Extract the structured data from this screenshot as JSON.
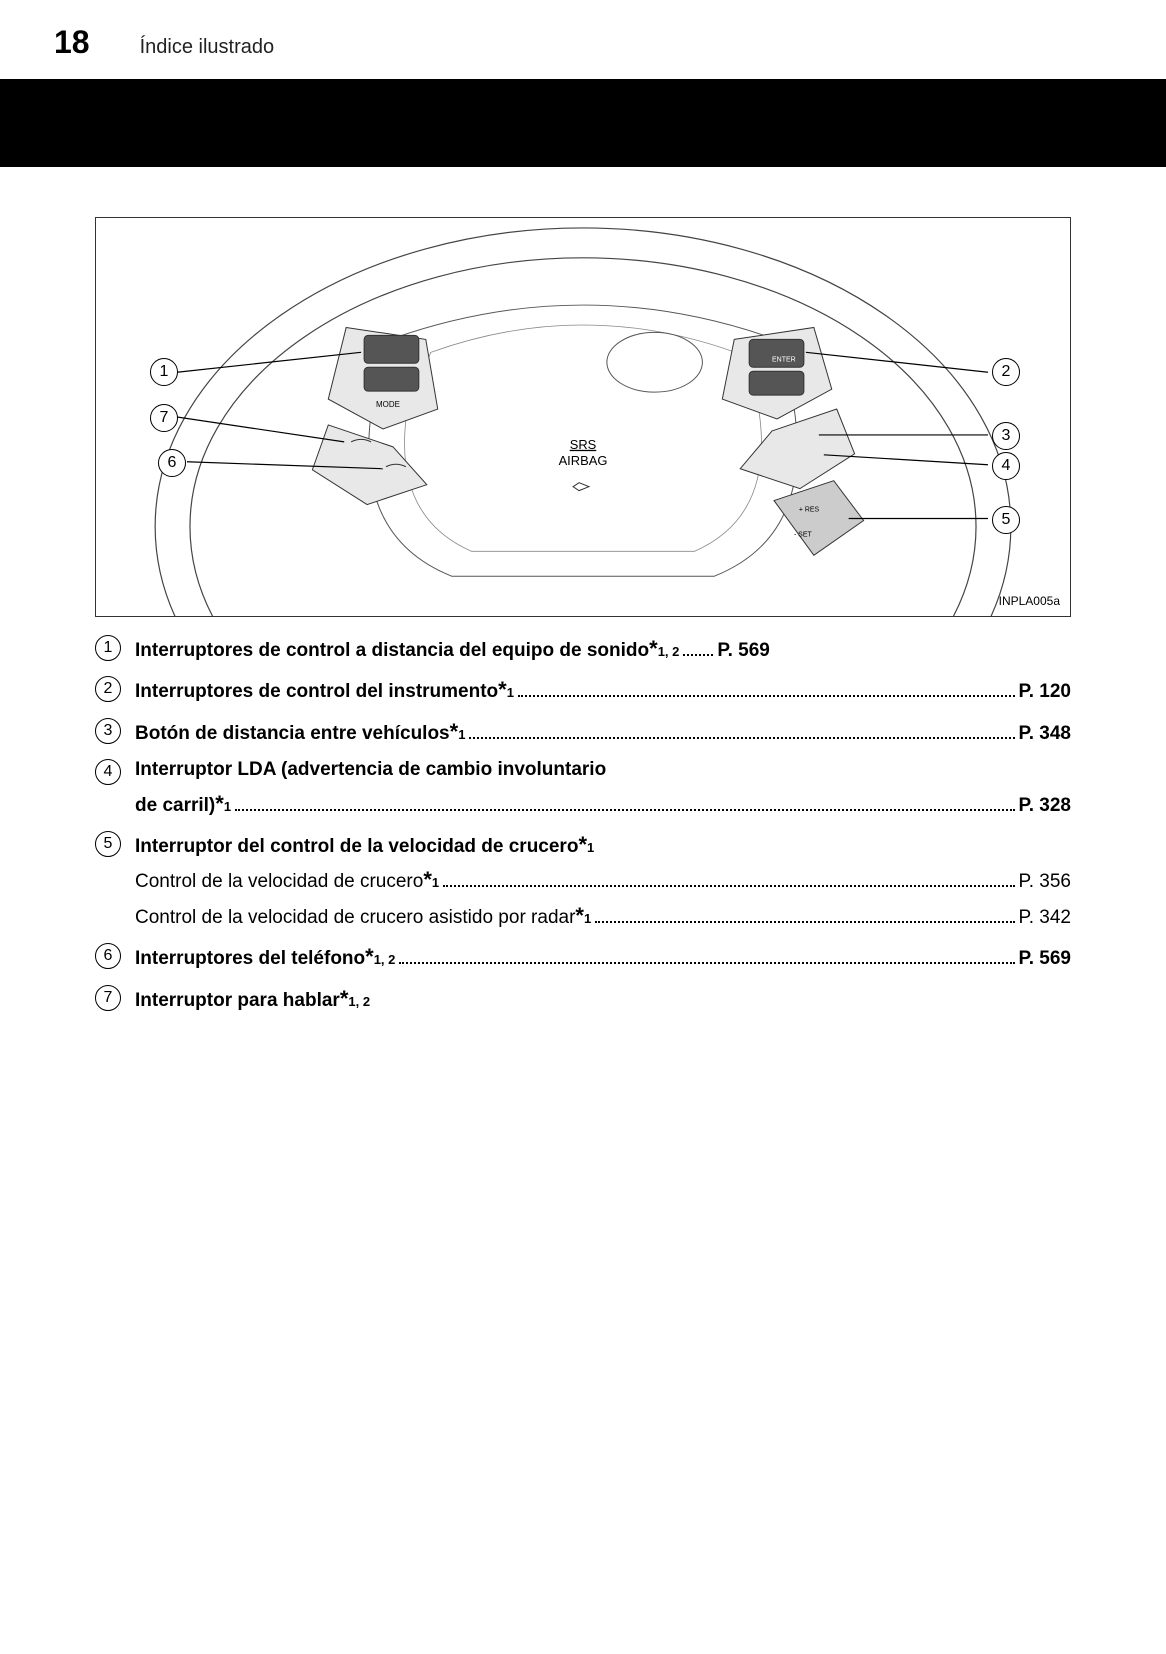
{
  "header": {
    "page_number": "18",
    "section_title": "Índice ilustrado"
  },
  "diagram": {
    "image_code": "INPLA005a",
    "srs_text_top": "SRS",
    "srs_text_bottom": "AIRBAG",
    "callouts": {
      "c1": "1",
      "c2": "2",
      "c3": "3",
      "c4": "4",
      "c5": "5",
      "c6": "6",
      "c7": "7"
    }
  },
  "items": [
    {
      "num": "1",
      "lines": [
        {
          "bold": true,
          "text": "Interruptores de control a distancia del equipo de sonido",
          "sup": "1, 2",
          "page": "P. 569",
          "dots_small": true
        }
      ]
    },
    {
      "num": "2",
      "lines": [
        {
          "bold": true,
          "text": "Interruptores de control del instrumento",
          "sup": "1",
          "page": "P. 120"
        }
      ]
    },
    {
      "num": "3",
      "lines": [
        {
          "bold": true,
          "text": "Botón de distancia entre vehículos",
          "sup": "1",
          "page": "P. 348"
        }
      ]
    },
    {
      "num": "4",
      "lines": [
        {
          "bold": true,
          "text": "Interruptor LDA (advertencia de cambio involuntario",
          "nobreak": true
        },
        {
          "bold": true,
          "text": "de carril)",
          "sup": "1",
          "page": "P. 328"
        }
      ]
    },
    {
      "num": "5",
      "lines": [
        {
          "bold": true,
          "text": "Interruptor del control de la velocidad de crucero",
          "sup": "1",
          "nobreak": true
        },
        {
          "bold": false,
          "text": "Control de la velocidad de crucero",
          "sup": "1",
          "page": "P. 356",
          "page_bold": false
        },
        {
          "bold": false,
          "text": "Control de la velocidad de crucero asistido por radar",
          "sup": "1",
          "page": "P. 342",
          "page_bold": false
        }
      ]
    },
    {
      "num": "6",
      "lines": [
        {
          "bold": true,
          "text": "Interruptores del teléfono",
          "sup": "1, 2",
          "page": "P. 569"
        }
      ]
    },
    {
      "num": "7",
      "lines": [
        {
          "bold": true,
          "text": "Interruptor para hablar",
          "sup": "1, 2",
          "nobreak": true
        }
      ]
    }
  ]
}
